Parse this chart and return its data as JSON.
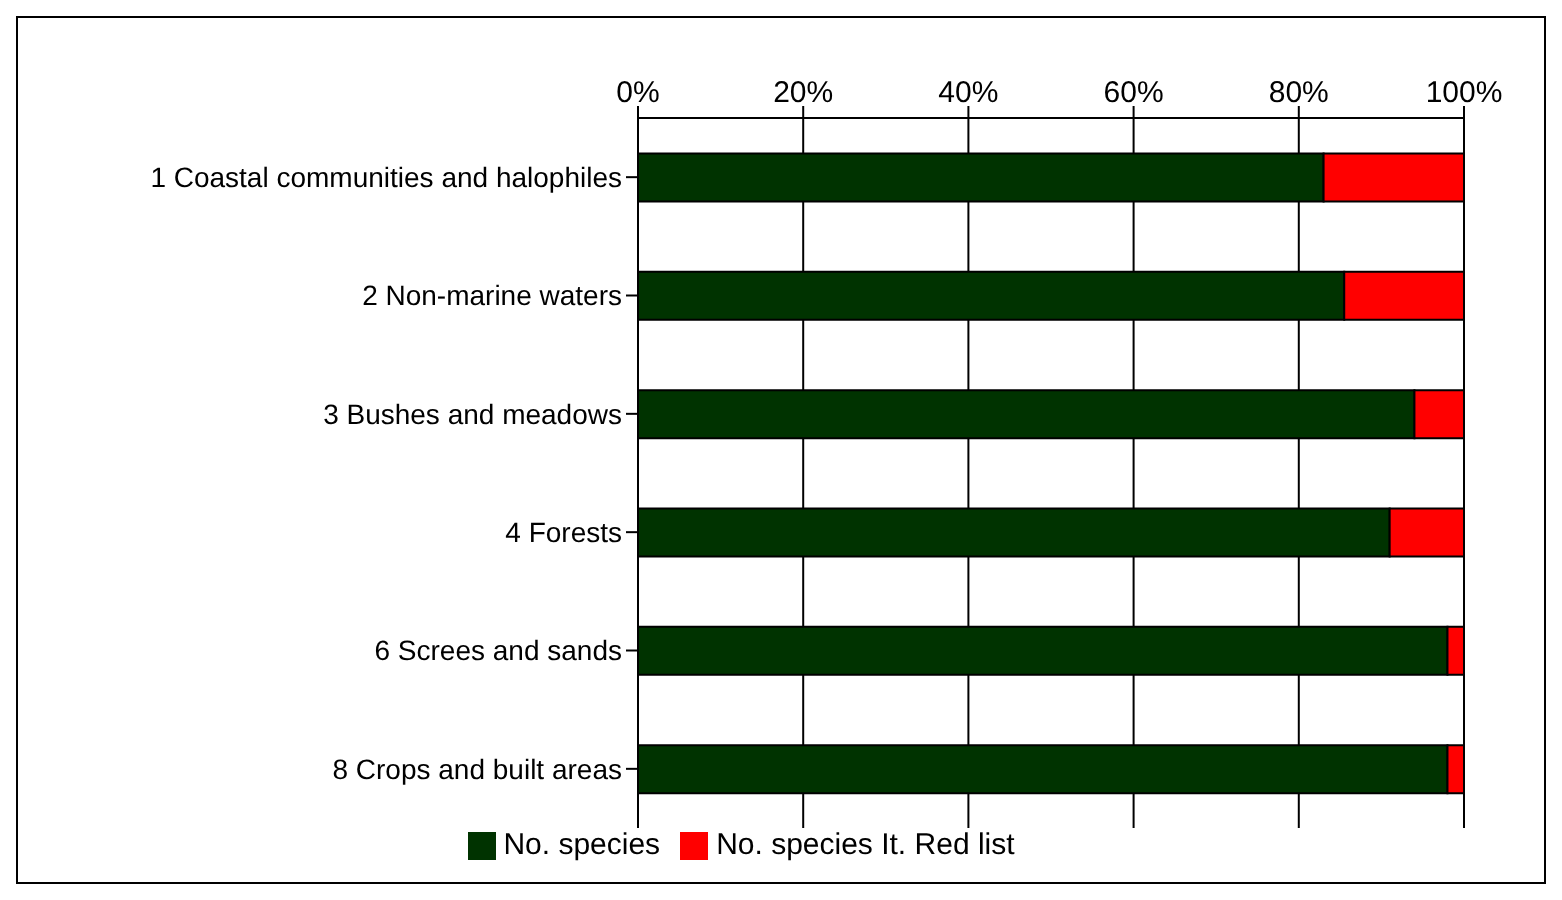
{
  "chart_data": {
    "type": "bar",
    "orientation": "horizontal",
    "stacked": true,
    "categories": [
      "1 Coastal communities and halophiles",
      "2 Non-marine waters",
      "3 Bushes and meadows",
      "4 Forests",
      "6 Screes and sands",
      "8 Crops and built areas"
    ],
    "series": [
      {
        "name": "No. species",
        "color": "#003300",
        "values": [
          83,
          85.5,
          94,
          91,
          98,
          98
        ]
      },
      {
        "name": "No. species It. Red list",
        "color": "#ff0000",
        "values": [
          17,
          14.5,
          6,
          9,
          2,
          2
        ]
      }
    ],
    "xlim": [
      0,
      100
    ],
    "xticks": [
      {
        "value": 0,
        "label": "0%"
      },
      {
        "value": 20,
        "label": "20%"
      },
      {
        "value": 40,
        "label": "40%"
      },
      {
        "value": 60,
        "label": "60%"
      },
      {
        "value": 80,
        "label": "80%"
      },
      {
        "value": 100,
        "label": "100%"
      }
    ],
    "grid": "x",
    "legend": "bottom"
  }
}
